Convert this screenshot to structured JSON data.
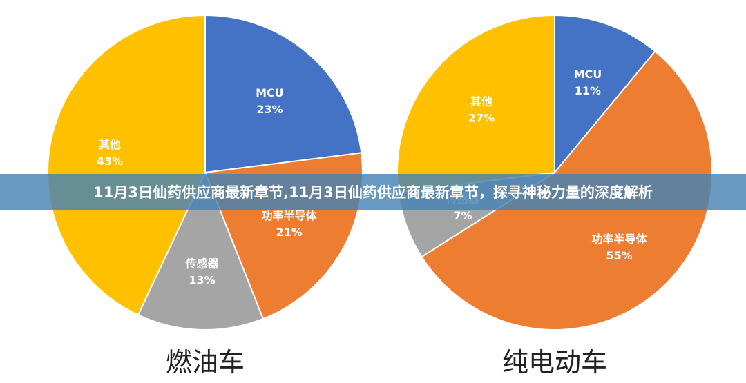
{
  "banner": {
    "title": "11月3日仙药供应商最新章节,11月3日仙药供应商最新章节，探寻神秘力量的深度解析"
  },
  "chart_data": [
    {
      "type": "pie",
      "title": "燃油车",
      "slices": [
        {
          "label": "MCU",
          "value": 23,
          "value_label": "23%",
          "color": "#4472C4"
        },
        {
          "label": "功率半导体",
          "value": 21,
          "value_label": "21%",
          "color": "#ED7D31"
        },
        {
          "label": "传感器",
          "value": 13,
          "value_label": "13%",
          "color": "#A5A5A5"
        },
        {
          "label": "其他",
          "value": 43,
          "value_label": "43%",
          "color": "#FFC000"
        }
      ]
    },
    {
      "type": "pie",
      "title": "纯电动车",
      "slices": [
        {
          "label": "MCU",
          "value": 11,
          "value_label": "11%",
          "color": "#4472C4"
        },
        {
          "label": "功率半导体",
          "value": 55,
          "value_label": "55%",
          "color": "#ED7D31"
        },
        {
          "label": "传感器",
          "value": 7,
          "value_label": "7%",
          "color": "#A5A5A5"
        },
        {
          "label": "其他",
          "value": 27,
          "value_label": "27%",
          "color": "#FFC000"
        }
      ]
    }
  ]
}
